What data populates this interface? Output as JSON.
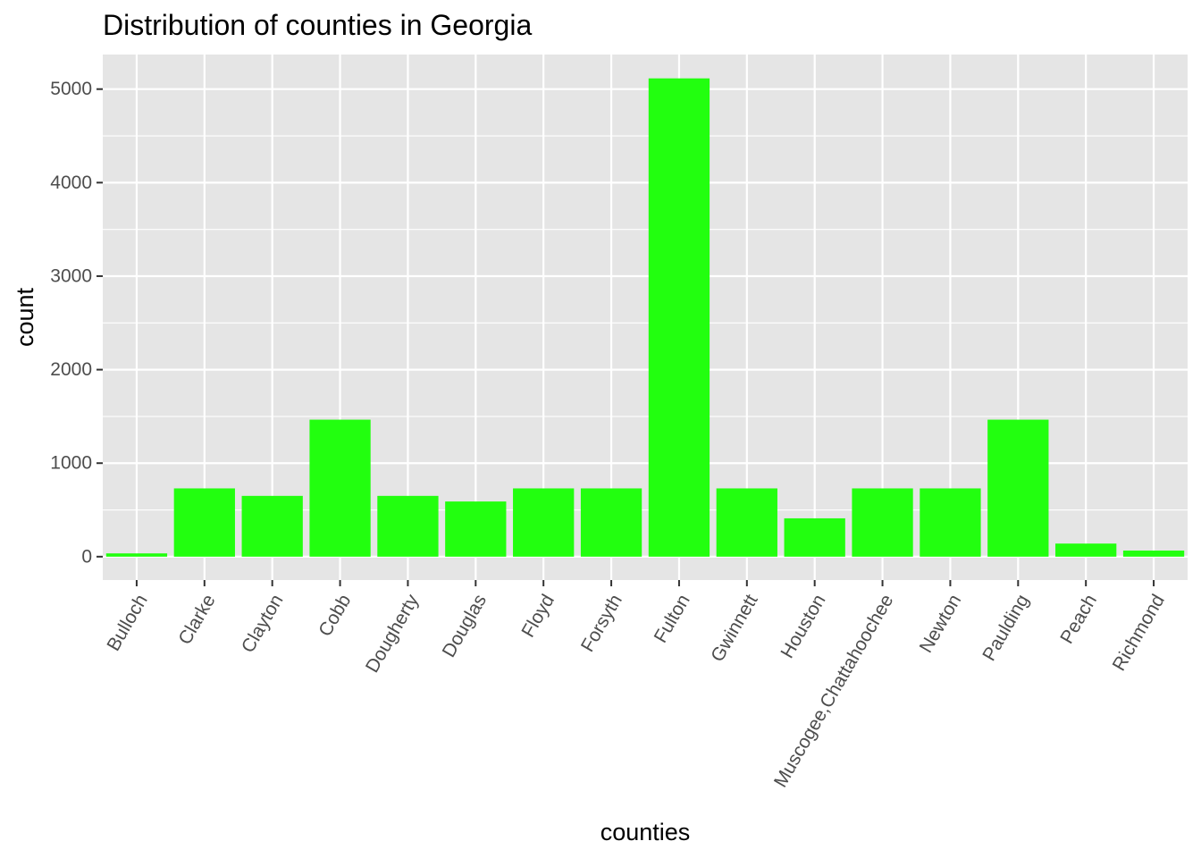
{
  "chart_data": {
    "type": "bar",
    "title": "Distribution of counties in Georgia",
    "xlabel": "counties",
    "ylabel": "count",
    "categories": [
      "Bulloch",
      "Clarke",
      "Clayton",
      "Cobb",
      "Dougherty",
      "Douglas",
      "Floyd",
      "Forsyth",
      "Fulton",
      "Gwinnett",
      "Houston",
      "Muscogee,Chattahoochee",
      "Newton",
      "Paulding",
      "Peach",
      "Richmond"
    ],
    "values": [
      35,
      730,
      650,
      1465,
      650,
      590,
      730,
      730,
      5115,
      730,
      410,
      730,
      730,
      1465,
      140,
      65
    ],
    "ylim": [
      -250,
      5370
    ],
    "yticks": [
      0,
      1000,
      2000,
      3000,
      4000,
      5000
    ],
    "ytick_labels": [
      "0",
      "1000",
      "2000",
      "3000",
      "4000",
      "5000"
    ],
    "grid": true,
    "legend": "none",
    "colors": {
      "bar": "#22ff0f",
      "panel_background": "#e5e5e5",
      "grid": "#ffffff",
      "tick_text": "#4d4d4d",
      "tick_mark": "#333333"
    }
  }
}
